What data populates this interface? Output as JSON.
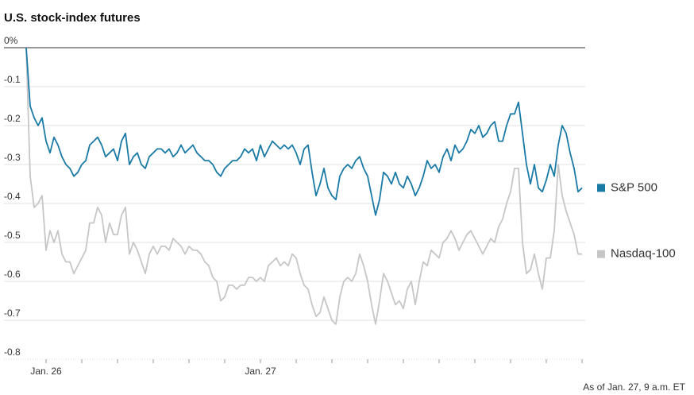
{
  "chart_data": {
    "type": "line",
    "title": "U.S. stock-index futures",
    "note": "As of Jan. 27, 9 a.m. ET",
    "categories": [
      null,
      null,
      null,
      null,
      null,
      "Jan. 26",
      null,
      null,
      null,
      null,
      null,
      null,
      null,
      null,
      null,
      null,
      null,
      null,
      null,
      null,
      null,
      null,
      null,
      null,
      null,
      null,
      null,
      null,
      null,
      null,
      null,
      null,
      null,
      null,
      null,
      null,
      null,
      null,
      null,
      null,
      null,
      null,
      null,
      null,
      null,
      null,
      null,
      null,
      null,
      null,
      null,
      null,
      null,
      null,
      null,
      null,
      null,
      null,
      null,
      "Jan. 27",
      null,
      null,
      null,
      null,
      null,
      null,
      null,
      null,
      null,
      null,
      null,
      null,
      null,
      null,
      null,
      null,
      null,
      null,
      null,
      null,
      null,
      null,
      null,
      null,
      null,
      null,
      null,
      null,
      null,
      null,
      null,
      null,
      null,
      null,
      null,
      null,
      null,
      null,
      null,
      null,
      null,
      null,
      null,
      null,
      null,
      null,
      null,
      null,
      null,
      null,
      null,
      null,
      null,
      null,
      null,
      null,
      null,
      null,
      null,
      null,
      null,
      null,
      null,
      null,
      null,
      null,
      null,
      null,
      null,
      null,
      null,
      null,
      null,
      null,
      null,
      null,
      null,
      null,
      null,
      null,
      null
    ],
    "series": [
      {
        "name": "S&P 500",
        "color": "#1a7aa6",
        "values": [
          0,
          -0.15,
          -0.18,
          -0.2,
          -0.18,
          -0.24,
          -0.27,
          -0.23,
          -0.25,
          -0.28,
          -0.3,
          -0.31,
          -0.33,
          -0.32,
          -0.3,
          -0.29,
          -0.25,
          -0.24,
          -0.23,
          -0.25,
          -0.28,
          -0.27,
          -0.26,
          -0.29,
          -0.24,
          -0.22,
          -0.3,
          -0.28,
          -0.27,
          -0.3,
          -0.31,
          -0.28,
          -0.27,
          -0.26,
          -0.26,
          -0.27,
          -0.26,
          -0.28,
          -0.27,
          -0.25,
          -0.27,
          -0.26,
          -0.25,
          -0.27,
          -0.28,
          -0.29,
          -0.29,
          -0.3,
          -0.32,
          -0.33,
          -0.31,
          -0.3,
          -0.29,
          -0.29,
          -0.28,
          -0.26,
          -0.27,
          -0.26,
          -0.29,
          -0.25,
          -0.28,
          -0.26,
          -0.24,
          -0.25,
          -0.26,
          -0.25,
          -0.26,
          -0.25,
          -0.27,
          -0.3,
          -0.26,
          -0.25,
          -0.32,
          -0.38,
          -0.35,
          -0.31,
          -0.36,
          -0.38,
          -0.39,
          -0.33,
          -0.31,
          -0.3,
          -0.31,
          -0.29,
          -0.28,
          -0.31,
          -0.33,
          -0.38,
          -0.43,
          -0.39,
          -0.32,
          -0.33,
          -0.35,
          -0.32,
          -0.35,
          -0.36,
          -0.33,
          -0.35,
          -0.38,
          -0.36,
          -0.33,
          -0.29,
          -0.31,
          -0.3,
          -0.32,
          -0.28,
          -0.26,
          -0.29,
          -0.25,
          -0.27,
          -0.26,
          -0.24,
          -0.21,
          -0.22,
          -0.2,
          -0.23,
          -0.22,
          -0.2,
          -0.19,
          -0.24,
          -0.24,
          -0.2,
          -0.17,
          -0.17,
          -0.14,
          -0.22,
          -0.3,
          -0.35,
          -0.3,
          -0.36,
          -0.37,
          -0.34,
          -0.3,
          -0.33,
          -0.25,
          -0.2,
          -0.22,
          -0.27,
          -0.31,
          -0.37,
          -0.36
        ]
      },
      {
        "name": "Nasdaq-100",
        "color": "#c6c6c6",
        "values": [
          0,
          -0.33,
          -0.41,
          -0.4,
          -0.38,
          -0.52,
          -0.47,
          -0.5,
          -0.47,
          -0.53,
          -0.55,
          -0.55,
          -0.58,
          -0.56,
          -0.54,
          -0.52,
          -0.45,
          -0.45,
          -0.41,
          -0.43,
          -0.5,
          -0.45,
          -0.48,
          -0.48,
          -0.43,
          -0.41,
          -0.53,
          -0.5,
          -0.52,
          -0.55,
          -0.58,
          -0.53,
          -0.51,
          -0.53,
          -0.51,
          -0.51,
          -0.52,
          -0.49,
          -0.5,
          -0.51,
          -0.53,
          -0.51,
          -0.52,
          -0.52,
          -0.53,
          -0.55,
          -0.56,
          -0.59,
          -0.6,
          -0.65,
          -0.64,
          -0.61,
          -0.61,
          -0.62,
          -0.61,
          -0.61,
          -0.59,
          -0.59,
          -0.6,
          -0.59,
          -0.6,
          -0.56,
          -0.55,
          -0.54,
          -0.56,
          -0.55,
          -0.56,
          -0.53,
          -0.54,
          -0.58,
          -0.61,
          -0.62,
          -0.66,
          -0.69,
          -0.68,
          -0.64,
          -0.67,
          -0.7,
          -0.71,
          -0.64,
          -0.6,
          -0.59,
          -0.6,
          -0.58,
          -0.53,
          -0.56,
          -0.6,
          -0.66,
          -0.71,
          -0.65,
          -0.58,
          -0.6,
          -0.63,
          -0.66,
          -0.65,
          -0.67,
          -0.62,
          -0.6,
          -0.66,
          -0.6,
          -0.55,
          -0.56,
          -0.52,
          -0.53,
          -0.54,
          -0.5,
          -0.49,
          -0.47,
          -0.49,
          -0.52,
          -0.5,
          -0.48,
          -0.47,
          -0.49,
          -0.51,
          -0.53,
          -0.51,
          -0.49,
          -0.5,
          -0.46,
          -0.44,
          -0.4,
          -0.37,
          -0.31,
          -0.31,
          -0.5,
          -0.58,
          -0.57,
          -0.53,
          -0.58,
          -0.62,
          -0.54,
          -0.54,
          -0.47,
          -0.3,
          -0.38,
          -0.42,
          -0.45,
          -0.48,
          -0.53,
          -0.53
        ]
      }
    ],
    "ylim": [
      -0.8,
      0
    ],
    "yticks": [
      {
        "value": 0,
        "label": "0%"
      },
      -0.1,
      -0.2,
      -0.3,
      -0.4,
      -0.5,
      -0.6,
      -0.7,
      -0.8
    ],
    "grid": true
  }
}
